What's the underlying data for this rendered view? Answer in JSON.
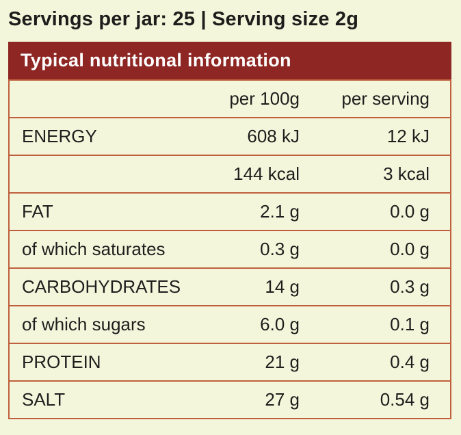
{
  "page": {
    "background_color": "#f4f6dc",
    "text_color": "#1e1e1c"
  },
  "title": "Servings per jar: 25 | Serving size 2g",
  "table": {
    "header": "Typical nutritional information",
    "column_headers": {
      "label": "",
      "per100g": "per 100g",
      "per_serving": "per serving"
    },
    "rows": [
      {
        "label": "ENERGY",
        "per100g": "608 kJ",
        "per_serving": "12 kJ"
      },
      {
        "label": "",
        "per100g": "144 kcal",
        "per_serving": "3 kcal"
      },
      {
        "label": "FAT",
        "per100g": "2.1 g",
        "per_serving": "0.0 g"
      },
      {
        "label": "of which saturates",
        "per100g": "0.3 g",
        "per_serving": "0.0 g"
      },
      {
        "label": "CARBOHYDRATES",
        "per100g": "14 g",
        "per_serving": "0.3 g"
      },
      {
        "label": "of which sugars",
        "per100g": "6.0 g",
        "per_serving": "0.1 g"
      },
      {
        "label": "PROTEIN",
        "per100g": "21 g",
        "per_serving": "0.4 g"
      },
      {
        "label": "SALT",
        "per100g": "27 g",
        "per_serving": "0.54 g"
      }
    ],
    "colors": {
      "header_bg": "#8e2623",
      "header_text": "#ffffff",
      "border": "#bf5f3d"
    }
  }
}
